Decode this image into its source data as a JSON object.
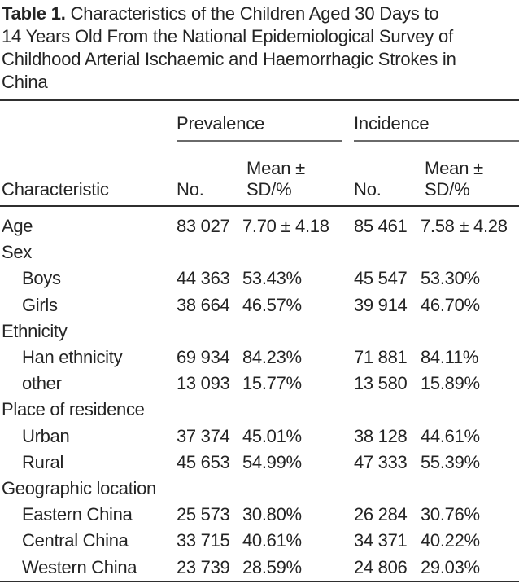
{
  "title": {
    "bold": "Table 1.",
    "line1": "Characteristics of the Children Aged 30 Days to",
    "line2": "14 Years Old From the National Epidemiological Survey of",
    "line3": "Childhood Arterial Ischaemic and Haemorrhagic Strokes in",
    "line4": "China"
  },
  "header": {
    "characteristic": "Characteristic",
    "groups": {
      "prevalence": "Prevalence",
      "incidence": "Incidence"
    },
    "sub": {
      "prev_no": "No.",
      "prev_mean": "Mean ± SD/%",
      "inc_no": "No.",
      "inc_mean": "Mean ± SD/%"
    }
  },
  "rows": [
    {
      "label": "Age",
      "prev_no": "83 027",
      "prev_mean": "7.70 ± 4.18",
      "inc_no": "85 461",
      "inc_mean": "7.58 ± 4.28"
    },
    {
      "label": "Sex",
      "prev_no": "",
      "prev_mean": "",
      "inc_no": "",
      "inc_mean": ""
    },
    {
      "label": "Boys",
      "prev_no": "44 363",
      "prev_mean": "53.43%",
      "inc_no": "45 547",
      "inc_mean": "53.30%"
    },
    {
      "label": "Girls",
      "prev_no": "38 664",
      "prev_mean": "46.57%",
      "inc_no": "39 914",
      "inc_mean": "46.70%"
    },
    {
      "label": "Ethnicity",
      "prev_no": "",
      "prev_mean": "",
      "inc_no": "",
      "inc_mean": ""
    },
    {
      "label": "Han ethnicity",
      "prev_no": "69 934",
      "prev_mean": "84.23%",
      "inc_no": "71 881",
      "inc_mean": "84.11%"
    },
    {
      "label": "other",
      "prev_no": "13 093",
      "prev_mean": "15.77%",
      "inc_no": "13 580",
      "inc_mean": "15.89%"
    },
    {
      "label": "Place of residence",
      "prev_no": "",
      "prev_mean": "",
      "inc_no": "",
      "inc_mean": ""
    },
    {
      "label": "Urban",
      "prev_no": "37 374",
      "prev_mean": "45.01%",
      "inc_no": "38 128",
      "inc_mean": "44.61%"
    },
    {
      "label": "Rural",
      "prev_no": "45 653",
      "prev_mean": "54.99%",
      "inc_no": "47 333",
      "inc_mean": "55.39%"
    },
    {
      "label": "Geographic location",
      "prev_no": "",
      "prev_mean": "",
      "inc_no": "",
      "inc_mean": ""
    },
    {
      "label": "Eastern China",
      "prev_no": "25 573",
      "prev_mean": "30.80%",
      "inc_no": "26 284",
      "inc_mean": "30.76%"
    },
    {
      "label": "Central China",
      "prev_no": "33 715",
      "prev_mean": "40.61%",
      "inc_no": "34 371",
      "inc_mean": "40.22%"
    },
    {
      "label": "Western China",
      "prev_no": "23 739",
      "prev_mean": "28.59%",
      "inc_no": "24 806",
      "inc_mean": "29.03%"
    }
  ],
  "colors": {
    "text": "#242424",
    "rule": "#2f2f2f",
    "underline": "#6a6a6a",
    "paper": "#ffffff"
  }
}
